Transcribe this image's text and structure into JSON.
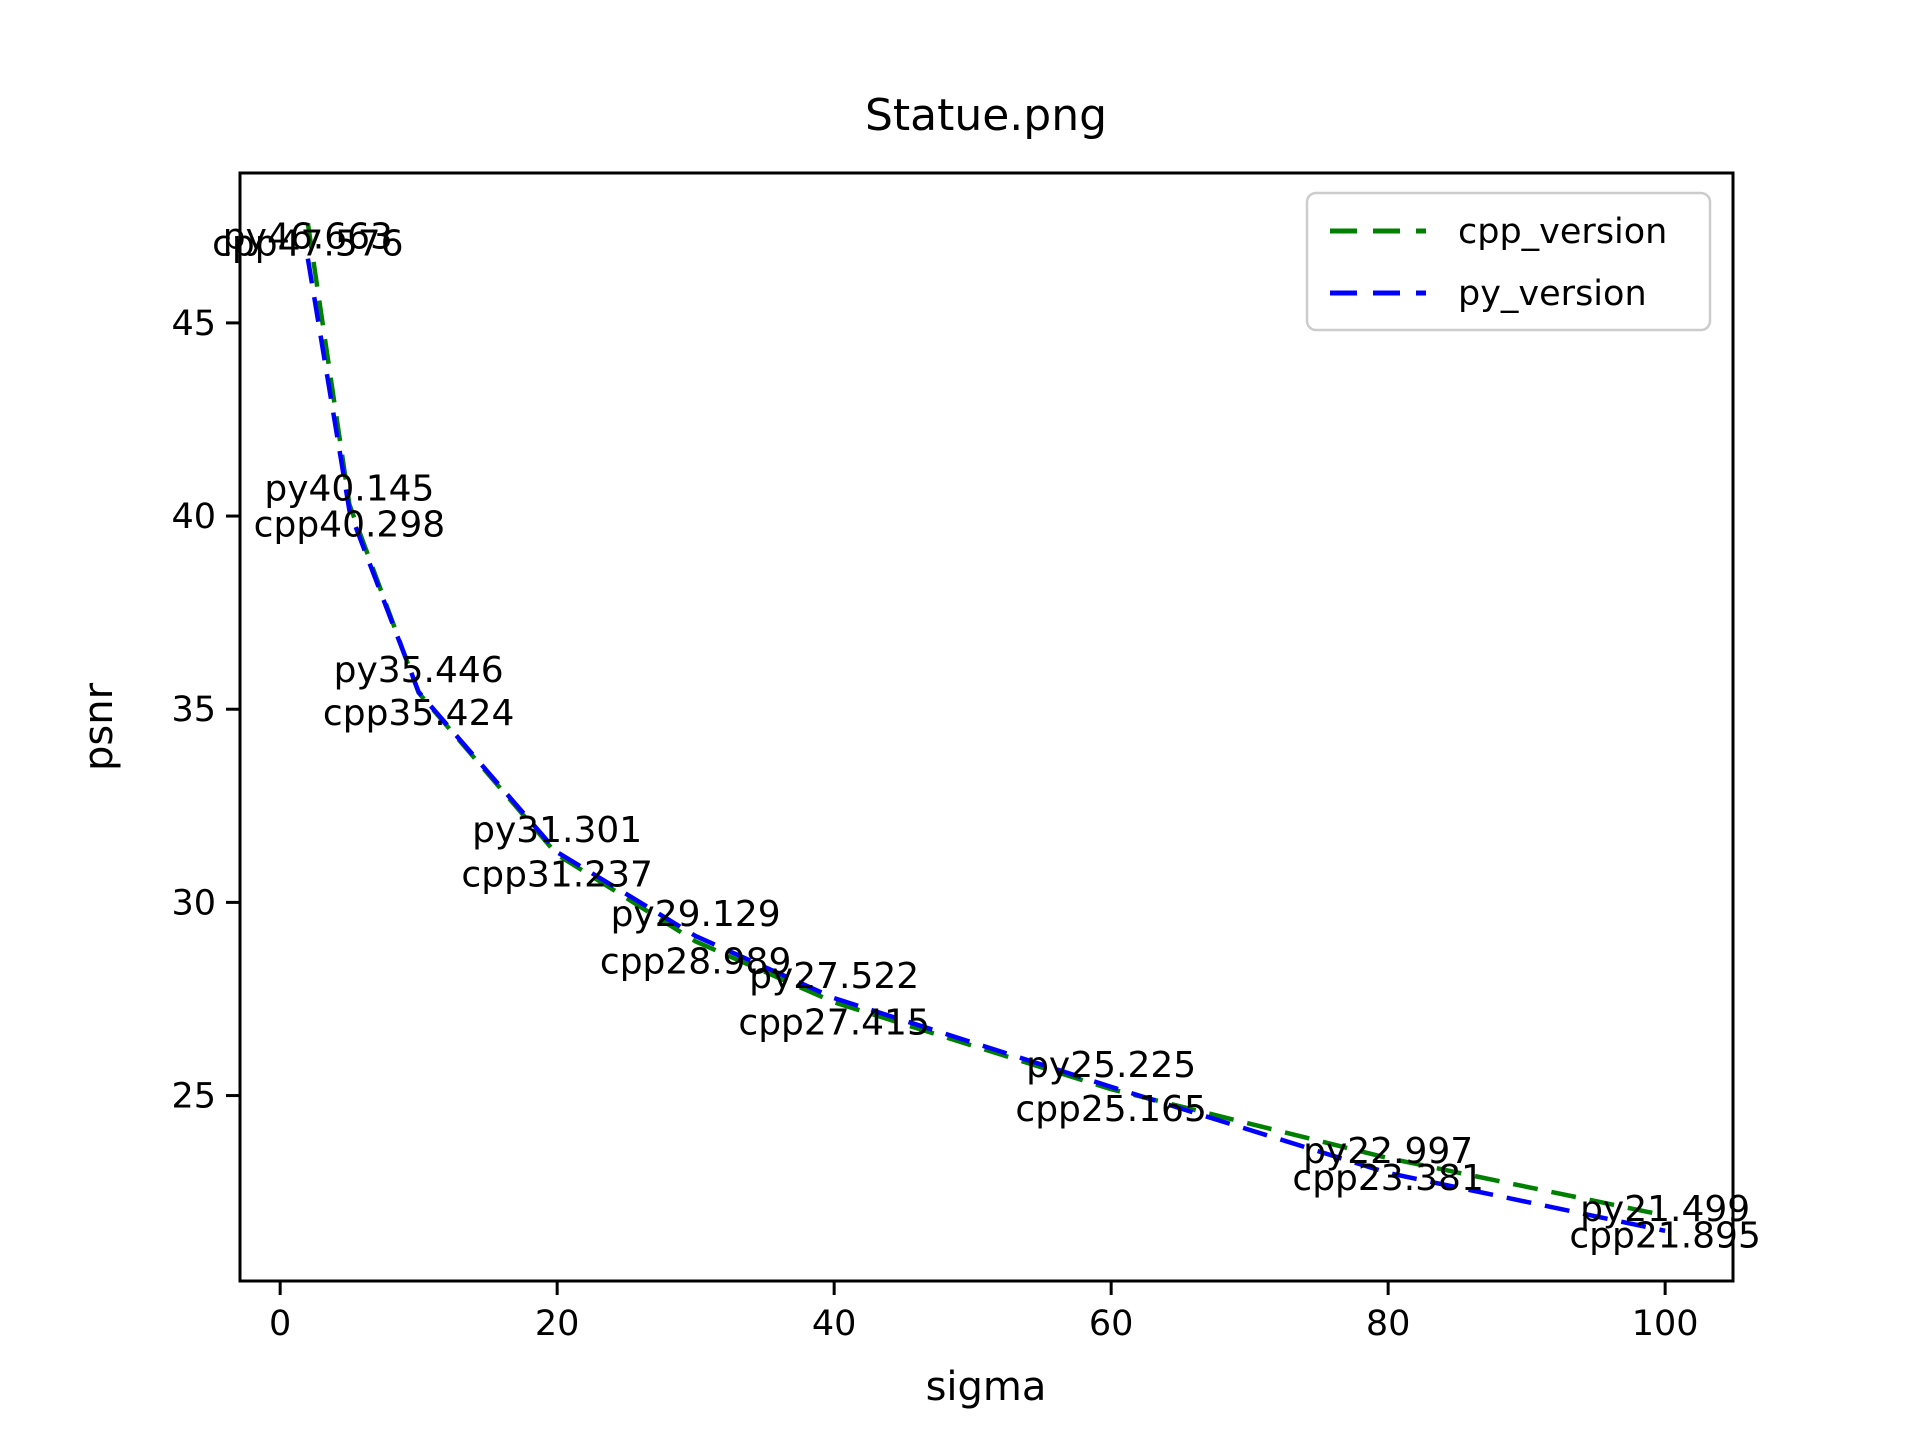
{
  "figure": {
    "background": "#ffffff",
    "axis_color": "#000000",
    "text_color": "#000000",
    "legend_border_color": "#cccccc",
    "legend_background": "#ffffff"
  },
  "chart_data": {
    "type": "line",
    "title": "Statue.png",
    "xlabel": "sigma",
    "ylabel": "psnr",
    "x": [
      2,
      5,
      10,
      20,
      30,
      40,
      60,
      80,
      100
    ],
    "series": [
      {
        "name": "cpp_version",
        "label_prefix": "cpp",
        "color": "#008000",
        "linestyle": "dashed",
        "values": [
          47.576,
          40.298,
          35.424,
          31.237,
          28.989,
          27.415,
          25.165,
          23.381,
          21.895
        ]
      },
      {
        "name": "py_version",
        "label_prefix": "py",
        "color": "#0000ff",
        "linestyle": "dashed",
        "values": [
          46.663,
          40.145,
          35.446,
          31.301,
          29.129,
          27.522,
          25.225,
          22.997,
          21.499
        ]
      }
    ],
    "point_labels": {
      "cpp_version": [
        "cpp47.576",
        "cpp40.298",
        "cpp35.424",
        "cpp31.237",
        "cpp28.989",
        "cpp27.415",
        "cpp25.165",
        "cpp23.381",
        "cpp21.895"
      ],
      "py_version": [
        "py46.663",
        "py40.145",
        "py35.446",
        "py31.301",
        "py29.129",
        "py27.522",
        "py25.225",
        "py22.997",
        "py21.499"
      ]
    },
    "xticks": [
      0,
      20,
      40,
      60,
      80,
      100
    ],
    "yticks": [
      25,
      30,
      35,
      40,
      45
    ],
    "xlim": [
      -2.9,
      104.9
    ],
    "ylim": [
      20.2,
      48.88
    ],
    "grid": false,
    "legend": {
      "position": "upper right",
      "entries": [
        "cpp_version",
        "py_version"
      ]
    }
  }
}
